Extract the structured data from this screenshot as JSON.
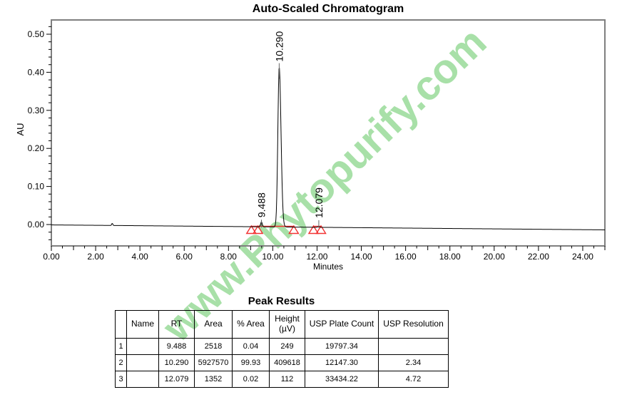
{
  "watermark": {
    "text": "www.Phytopurify.com",
    "color": "#a8e0a8"
  },
  "chart_data": {
    "type": "line",
    "title": "Auto-Scaled Chromatogram",
    "xlabel": "Minutes",
    "ylabel": "AU",
    "xlim": [
      0,
      25
    ],
    "ylim": [
      -0.056,
      0.5375
    ],
    "grid": false,
    "x_tick_values": [
      0,
      2,
      4,
      6,
      8,
      10,
      12,
      14,
      16,
      18,
      20,
      22,
      24
    ],
    "x_tick_labels": [
      "0.00",
      "2.00",
      "4.00",
      "6.00",
      "8.00",
      "10.00",
      "12.00",
      "14.00",
      "16.00",
      "18.00",
      "20.00",
      "22.00",
      "24.00"
    ],
    "x_minor_step": 0.5,
    "y_tick_values": [
      0,
      0.1,
      0.2,
      0.3,
      0.4,
      0.5
    ],
    "y_tick_labels": [
      "0.00",
      "0.10",
      "0.20",
      "0.30",
      "0.40",
      "0.50"
    ],
    "y_minor_step": 0.02,
    "line_color": "#000000",
    "frame_color": "#7f7f7f",
    "marker_color": "#f23333",
    "baseline_au_start": -0.001,
    "baseline_au_end": -0.014,
    "noise_blip_min": 2.75,
    "peaks": [
      {
        "rt": 9.488,
        "label": "9.488",
        "height_uv": 249
      },
      {
        "rt": 10.29,
        "label": "10.290",
        "height_uv": 409618
      },
      {
        "rt": 12.079,
        "label": "12.079",
        "height_uv": 112
      }
    ],
    "integration_markers_min": [
      9.03,
      9.33,
      10.95,
      11.84,
      12.18
    ],
    "integration_baseline_segments_min": [
      [
        9.03,
        10.95
      ],
      [
        11.84,
        12.18
      ]
    ]
  },
  "table": {
    "title": "Peak Results",
    "columns": [
      "",
      "Name",
      "RT",
      "Area",
      "% Area",
      "Height (µV)",
      "USP Plate Count",
      "USP Resolution"
    ],
    "rows": [
      [
        "1",
        "",
        "9.488",
        "2518",
        "0.04",
        "249",
        "19797.34",
        ""
      ],
      [
        "2",
        "",
        "10.290",
        "5927570",
        "99.93",
        "409618",
        "12147.30",
        "2.34"
      ],
      [
        "3",
        "",
        "12.079",
        "1352",
        "0.02",
        "112",
        "33434.22",
        "4.72"
      ]
    ]
  }
}
